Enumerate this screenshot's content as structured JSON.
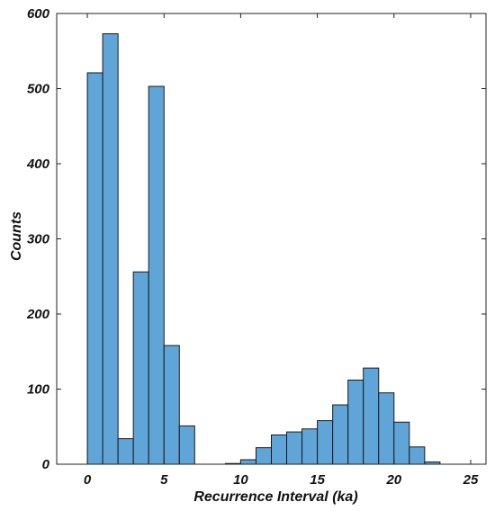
{
  "chart_data": {
    "type": "bar",
    "title": "",
    "xlabel": "Recurrence Interval (ka)",
    "ylabel": "Counts",
    "xlim": [
      -2,
      26
    ],
    "ylim": [
      0,
      600
    ],
    "xticks": [
      "0",
      "5",
      "10",
      "15",
      "20",
      "25"
    ],
    "yticks": [
      "0",
      "100",
      "200",
      "300",
      "400",
      "500",
      "600"
    ],
    "bin_width": 1,
    "bar_color": "#5fa5d8",
    "edge_color": "#1a1a1a",
    "grid": false,
    "legend": "none",
    "bins": [
      {
        "x0": 0,
        "x1": 1,
        "count": 521
      },
      {
        "x0": 1,
        "x1": 2,
        "count": 573
      },
      {
        "x0": 2,
        "x1": 3,
        "count": 34
      },
      {
        "x0": 3,
        "x1": 4,
        "count": 256
      },
      {
        "x0": 4,
        "x1": 5,
        "count": 503
      },
      {
        "x0": 5,
        "x1": 6,
        "count": 158
      },
      {
        "x0": 6,
        "x1": 7,
        "count": 51
      },
      {
        "x0": 9,
        "x1": 10,
        "count": 1
      },
      {
        "x0": 10,
        "x1": 11,
        "count": 6
      },
      {
        "x0": 11,
        "x1": 12,
        "count": 22
      },
      {
        "x0": 12,
        "x1": 13,
        "count": 39
      },
      {
        "x0": 13,
        "x1": 14,
        "count": 43
      },
      {
        "x0": 14,
        "x1": 15,
        "count": 47
      },
      {
        "x0": 15,
        "x1": 16,
        "count": 58
      },
      {
        "x0": 16,
        "x1": 17,
        "count": 79
      },
      {
        "x0": 17,
        "x1": 18,
        "count": 112
      },
      {
        "x0": 18,
        "x1": 19,
        "count": 128
      },
      {
        "x0": 19,
        "x1": 20,
        "count": 95
      },
      {
        "x0": 20,
        "x1": 21,
        "count": 56
      },
      {
        "x0": 21,
        "x1": 22,
        "count": 23
      },
      {
        "x0": 22,
        "x1": 23,
        "count": 3
      }
    ]
  }
}
